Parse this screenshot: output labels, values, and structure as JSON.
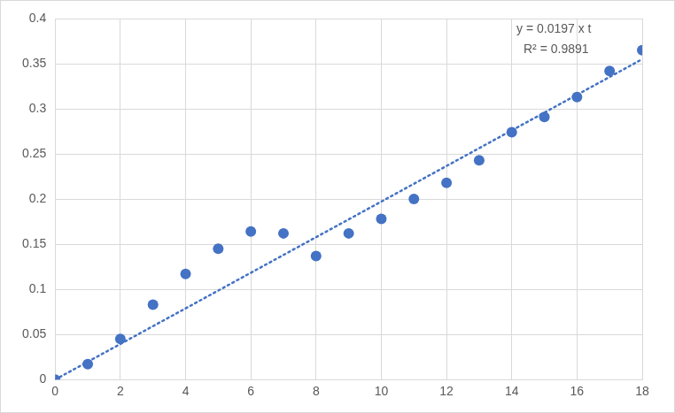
{
  "chart_data": {
    "type": "scatter",
    "x": [
      0,
      1,
      2,
      3,
      4,
      5,
      6,
      7,
      8,
      9,
      10,
      11,
      12,
      13,
      14,
      15,
      16,
      17,
      18
    ],
    "series": [
      {
        "type": "scatter",
        "color": "#4472c4",
        "marker": "circle",
        "values": [
          0,
          0.017,
          0.045,
          0.083,
          0.117,
          0.145,
          0.164,
          0.162,
          0.137,
          0.162,
          0.178,
          0.2,
          0.218,
          0.243,
          0.274,
          0.291,
          0.313,
          0.342,
          0.365
        ]
      },
      {
        "type": "line",
        "color": "#4472c4",
        "line_style": "dotted",
        "x": [
          0,
          18
        ],
        "values": [
          0,
          0.355
        ]
      }
    ],
    "annotations": [
      "y = 0.0197 x t",
      "R² = 0.9891"
    ],
    "xlim": [
      0,
      18
    ],
    "xticks": [
      0,
      2,
      4,
      6,
      8,
      10,
      12,
      14,
      16,
      18
    ],
    "ylim": [
      0,
      0.4
    ],
    "yticks": [
      0,
      0.05,
      0.1,
      0.15,
      0.2,
      0.25,
      0.3,
      0.35,
      0.4
    ],
    "grid": true
  }
}
